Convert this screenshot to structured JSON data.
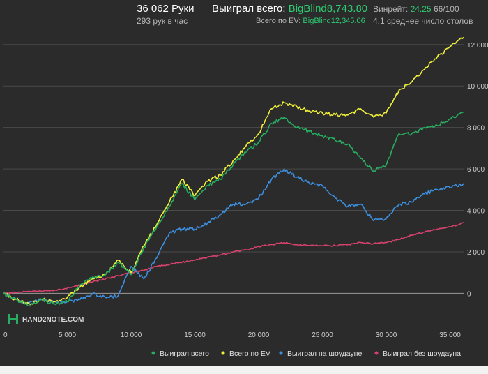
{
  "header": {
    "hands": "36 062 Руки",
    "hands_rate": "293 рук в час",
    "won_label": "Выиграл всего:",
    "won_value": "BigBlind8,743.80",
    "ev_label": "Всего по EV:",
    "ev_value": "BigBlind12,345.06",
    "winrate_label": "Винрейт:",
    "winrate_value": "24.25",
    "winrate_extra": "66/100",
    "tables": "4.1 среднее число столов"
  },
  "watermark": "HAND2NOTE.COM",
  "colors": {
    "green": "#27ae60",
    "yellow": "#f1f13a",
    "blue": "#3d8fe0",
    "pink": "#d9426e",
    "grid": "#4a4a4a",
    "zero": "#9a9a9a"
  },
  "chart_data": {
    "type": "line",
    "x_ticks": [
      "0",
      "5 000",
      "10 000",
      "15 000",
      "20 000",
      "25 000",
      "30 000",
      "35 000"
    ],
    "y_ticks": [
      "0",
      "2 000",
      "4 000",
      "6 000",
      "8 000",
      "10 000",
      "12 000"
    ],
    "xlim": [
      0,
      36062
    ],
    "ylim": [
      -1500,
      12800
    ],
    "grid": true,
    "legend_position": "bottom",
    "series": [
      {
        "name": "Выиграл всего",
        "color": "#27ae60",
        "x": [
          0,
          1000,
          2000,
          3000,
          4000,
          5000,
          6000,
          7000,
          8000,
          9000,
          10000,
          11000,
          12000,
          13000,
          14000,
          15000,
          16000,
          17000,
          18000,
          19000,
          20000,
          21000,
          22000,
          23000,
          24000,
          25000,
          26000,
          27000,
          28000,
          29000,
          30000,
          31000,
          32000,
          33000,
          34000,
          35000,
          36062
        ],
        "y": [
          0,
          -300,
          -600,
          -300,
          -500,
          -400,
          400,
          800,
          900,
          1500,
          900,
          2200,
          3200,
          4200,
          5300,
          4500,
          5200,
          5500,
          6200,
          6800,
          7300,
          8200,
          8500,
          8000,
          7800,
          7600,
          7400,
          7200,
          6500,
          5900,
          6200,
          7700,
          7700,
          8000,
          8100,
          8400,
          8744
        ]
      },
      {
        "name": "Всего по EV",
        "color": "#f1f13a",
        "x": [
          0,
          1000,
          2000,
          3000,
          4000,
          5000,
          6000,
          7000,
          8000,
          9000,
          10000,
          11000,
          12000,
          13000,
          14000,
          15000,
          16000,
          17000,
          18000,
          19000,
          20000,
          21000,
          22000,
          23000,
          24000,
          25000,
          26000,
          27000,
          28000,
          29000,
          30000,
          31000,
          32000,
          33000,
          34000,
          35000,
          36062
        ],
        "y": [
          0,
          -300,
          -500,
          -300,
          -400,
          -200,
          300,
          700,
          900,
          1600,
          1000,
          2300,
          3300,
          4400,
          5500,
          4700,
          5400,
          5700,
          6400,
          7100,
          7700,
          8900,
          9200,
          9000,
          8800,
          8700,
          8600,
          8600,
          8900,
          8500,
          8700,
          9800,
          10200,
          10800,
          11400,
          11900,
          12345
        ]
      },
      {
        "name": "Выиграл на шоудауне",
        "color": "#3d8fe0",
        "x": [
          0,
          1000,
          2000,
          3000,
          4000,
          5000,
          6000,
          7000,
          8000,
          9000,
          10000,
          11000,
          12000,
          13000,
          14000,
          15000,
          16000,
          17000,
          18000,
          19000,
          20000,
          21000,
          22000,
          23000,
          24000,
          25000,
          26000,
          27000,
          28000,
          29000,
          30000,
          31000,
          32000,
          33000,
          34000,
          35000,
          36062
        ],
        "y": [
          0,
          -300,
          -500,
          -300,
          -400,
          -400,
          -300,
          0,
          -200,
          -100,
          1300,
          700,
          1700,
          2900,
          3100,
          3100,
          3400,
          3800,
          4300,
          4300,
          4600,
          5500,
          6000,
          5600,
          5300,
          5200,
          4600,
          4200,
          4300,
          3500,
          3600,
          4300,
          4400,
          4800,
          5000,
          5100,
          5300
        ]
      },
      {
        "name": "Выиграл без шоудауна",
        "color": "#d9426e",
        "x": [
          0,
          1000,
          2000,
          3000,
          4000,
          5000,
          6000,
          7000,
          8000,
          9000,
          10000,
          11000,
          12000,
          13000,
          14000,
          15000,
          16000,
          17000,
          18000,
          19000,
          20000,
          21000,
          22000,
          23000,
          24000,
          25000,
          26000,
          27000,
          28000,
          29000,
          30000,
          31000,
          32000,
          33000,
          34000,
          35000,
          36062
        ],
        "y": [
          0,
          50,
          100,
          100,
          150,
          250,
          400,
          550,
          700,
          850,
          1000,
          1100,
          1300,
          1400,
          1500,
          1600,
          1750,
          1850,
          2000,
          2100,
          2250,
          2350,
          2450,
          2350,
          2300,
          2300,
          2300,
          2350,
          2450,
          2400,
          2450,
          2600,
          2800,
          2950,
          3100,
          3200,
          3400
        ]
      }
    ]
  }
}
